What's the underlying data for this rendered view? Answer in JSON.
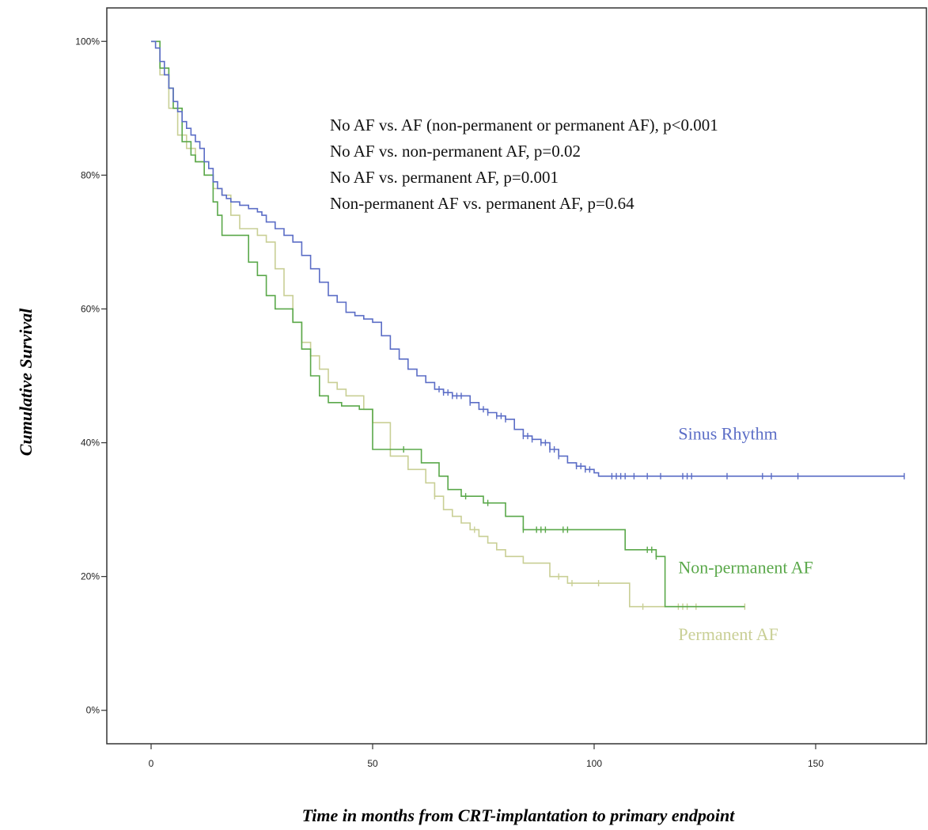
{
  "chart_data": {
    "type": "line",
    "title": "",
    "xlabel": "Time in months from CRT-implantation to primary endpoint",
    "ylabel": "Cumulative Survival",
    "xlim": [
      -10,
      175
    ],
    "ylim": [
      -5,
      105
    ],
    "xticks": [
      0,
      50,
      100,
      150
    ],
    "xtick_labels": [
      "0",
      "50",
      "100",
      "150"
    ],
    "yticks": [
      0,
      20,
      40,
      60,
      80,
      100
    ],
    "ytick_labels": [
      "0%",
      "20%",
      "40%",
      "60%",
      "80%",
      "100%"
    ],
    "grid": false,
    "annotations": [
      "No AF vs. AF (non-permanent or permanent AF), p<0.001",
      "No AF vs. non-permanent AF, p=0.02",
      "No AF vs. permanent AF, p=0.001",
      "Non-permanent AF vs. permanent AF, p=0.64"
    ],
    "series": [
      {
        "name": "Sinus Rhythm",
        "color": "#5b6dc6",
        "step": true,
        "x": [
          0,
          1,
          2,
          3,
          4,
          5,
          6,
          7,
          8,
          9,
          10,
          11,
          12,
          13,
          14,
          15,
          16,
          17,
          18,
          20,
          22,
          24,
          25,
          26,
          28,
          30,
          32,
          34,
          36,
          38,
          40,
          42,
          44,
          46,
          48,
          50,
          52,
          54,
          56,
          58,
          60,
          62,
          64,
          66,
          68,
          70,
          72,
          74,
          76,
          78,
          80,
          82,
          84,
          86,
          88,
          90,
          92,
          94,
          96,
          98,
          100,
          101,
          105,
          110,
          115,
          120,
          125,
          130,
          137,
          140,
          146,
          150,
          160,
          170
        ],
        "y": [
          100,
          99,
          97,
          95,
          93,
          91,
          89.5,
          88,
          87,
          86,
          85,
          84,
          82,
          81,
          79,
          78,
          77,
          76.5,
          76,
          75.5,
          75,
          74.5,
          74,
          73,
          72,
          71,
          70,
          68,
          66,
          64,
          62,
          61,
          59.5,
          59,
          58.5,
          58,
          56,
          54,
          52.5,
          51,
          50,
          49,
          48,
          47.5,
          47,
          47,
          46,
          45,
          44.5,
          44,
          43.5,
          42,
          41,
          40.5,
          40,
          39,
          38,
          37,
          36.5,
          36,
          35.5,
          35,
          35,
          35,
          35,
          35,
          35,
          35,
          35,
          35,
          35,
          35,
          35,
          35
        ],
        "censors": [
          65,
          66,
          67,
          68,
          69,
          70,
          72,
          75,
          76,
          78,
          79,
          80,
          84,
          85,
          86,
          88,
          89,
          90,
          91,
          92,
          96,
          97,
          98,
          99,
          104,
          105,
          106,
          107,
          109,
          112,
          115,
          120,
          121,
          122,
          130,
          138,
          140,
          146,
          170
        ]
      },
      {
        "name": "Non-permanent AF",
        "color": "#5aa84a",
        "step": true,
        "x": [
          0,
          2,
          4,
          5,
          7,
          9,
          10,
          12,
          14,
          15,
          16,
          18,
          22,
          24,
          26,
          28,
          30,
          32,
          34,
          36,
          38,
          40,
          43,
          47,
          50,
          54,
          58,
          61,
          65,
          67,
          70,
          75,
          80,
          84,
          94,
          100,
          105,
          107,
          114,
          115,
          116,
          134
        ],
        "y": [
          100,
          96,
          93,
          90,
          85,
          83,
          82,
          80,
          76,
          74,
          71,
          71,
          67,
          65,
          62,
          60,
          60,
          58,
          54,
          50,
          47,
          46,
          45.5,
          45,
          39,
          39,
          39,
          37,
          35,
          33,
          32,
          31,
          29,
          27,
          27,
          27,
          27,
          24,
          23,
          23,
          15.5,
          15.5
        ],
        "censors": [
          57,
          71,
          76,
          84,
          87,
          88,
          89,
          93,
          94,
          112,
          113,
          114
        ]
      },
      {
        "name": "Permanent AF",
        "color": "#c9cf95",
        "step": true,
        "x": [
          0,
          2,
          4,
          6,
          8,
          10,
          12,
          14,
          16,
          18,
          20,
          24,
          26,
          28,
          30,
          32,
          34,
          36,
          38,
          40,
          42,
          44,
          48,
          50,
          54,
          58,
          62,
          64,
          66,
          68,
          70,
          72,
          74,
          76,
          78,
          80,
          84,
          90,
          94,
          100,
          108,
          116,
          134
        ],
        "y": [
          100,
          95,
          90,
          86,
          84,
          82,
          80,
          78,
          77,
          74,
          72,
          71,
          70,
          66,
          62,
          58,
          55,
          53,
          51,
          49,
          48,
          47,
          45,
          43,
          38,
          36,
          34,
          32,
          30,
          29,
          28,
          27,
          26,
          25,
          24,
          23,
          22,
          20,
          19,
          19,
          15.5,
          15.5,
          15.5
        ],
        "censors": [
          64,
          73,
          92,
          95,
          101,
          111,
          119,
          120,
          121,
          123,
          134
        ]
      }
    ],
    "series_label_positions_data": [
      {
        "x": 119,
        "y": 40.5
      },
      {
        "x": 119,
        "y": 20.5
      },
      {
        "x": 119,
        "y": 10.5
      }
    ]
  }
}
